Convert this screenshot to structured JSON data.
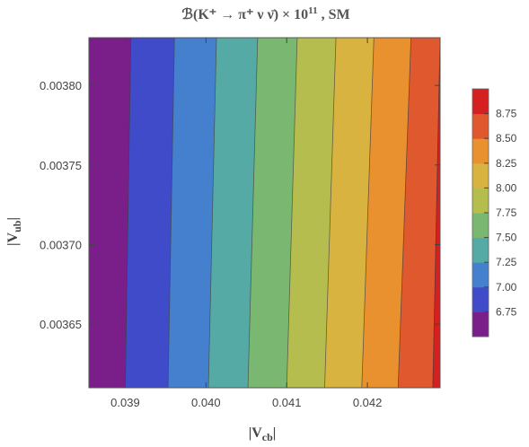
{
  "chart_data": {
    "type": "contour",
    "title": "ℬ(K⁺ → π⁺ ν ν̄) × 10¹¹ , SM",
    "title_parts": {
      "main": "ℬ(K⁺ → π⁺ ν ν̄) × 10",
      "exponent": "11",
      "suffix": " , SM"
    },
    "xlabel": "|V",
    "xlabel_sub": "cb",
    "xlabel_close": "|",
    "ylabel": "|V",
    "ylabel_sub": "ub",
    "ylabel_close": "|",
    "xlim": [
      0.03855,
      0.0429
    ],
    "ylim": [
      0.00361,
      0.00383
    ],
    "x_ticks": [
      0.039,
      0.04,
      0.041,
      0.042
    ],
    "x_tick_labels": [
      "0.039",
      "0.040",
      "0.041",
      "0.042"
    ],
    "y_ticks": [
      0.00365,
      0.0037,
      0.00375,
      0.0038
    ],
    "y_tick_labels": [
      "0.00365",
      "0.00370",
      "0.00375",
      "0.00380"
    ],
    "contour_levels": [
      6.75,
      7.0,
      7.25,
      7.5,
      7.75,
      8.0,
      8.25,
      8.5,
      8.75
    ],
    "contour_boundaries": [
      {
        "level": 6.75,
        "x_bottom": 0.039,
        "x_top": 0.03907
      },
      {
        "level": 7.0,
        "x_bottom": 0.03953,
        "x_top": 0.03961
      },
      {
        "level": 7.25,
        "x_bottom": 0.04003,
        "x_top": 0.04013
      },
      {
        "level": 7.5,
        "x_bottom": 0.04052,
        "x_top": 0.04064
      },
      {
        "level": 7.75,
        "x_bottom": 0.041,
        "x_top": 0.04113
      },
      {
        "level": 8.0,
        "x_bottom": 0.04147,
        "x_top": 0.04161
      },
      {
        "level": 8.25,
        "x_bottom": 0.04193,
        "x_top": 0.04208
      },
      {
        "level": 8.5,
        "x_bottom": 0.04238,
        "x_top": 0.04254
      },
      {
        "level": 8.75,
        "x_bottom": 0.04281,
        "x_top": 0.0429
      }
    ],
    "band_colors": [
      "#7a1f8a",
      "#3f4bc8",
      "#4580cf",
      "#56aaa6",
      "#7ab872",
      "#b5bd4f",
      "#d9b33f",
      "#e9902f",
      "#e0582e",
      "#d42020"
    ],
    "legend": {
      "placement": "right",
      "tick_values": [
        6.75,
        7.0,
        7.25,
        7.5,
        7.75,
        8.0,
        8.25,
        8.5,
        8.75
      ],
      "tick_labels": [
        "6.75",
        "7.00",
        "7.25",
        "7.50",
        "7.75",
        "8.00",
        "8.25",
        "8.50",
        "8.75"
      ]
    },
    "grid": false
  }
}
